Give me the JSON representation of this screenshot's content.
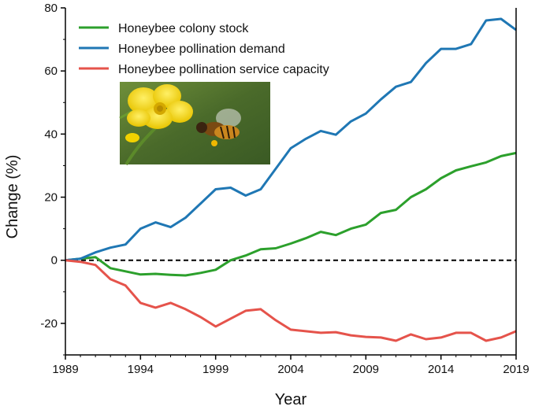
{
  "chart_data": {
    "type": "line",
    "xlabel": "Year",
    "ylabel": "Change (%)",
    "xlim": [
      1989,
      2019
    ],
    "ylim": [
      -30,
      80
    ],
    "x_ticks": [
      "1989",
      "1994",
      "1999",
      "2004",
      "2009",
      "2014",
      "2019"
    ],
    "y_ticks": [
      "80",
      "60",
      "40",
      "20",
      "0",
      "-20"
    ],
    "x_tick_values": [
      1989,
      1994,
      1999,
      2004,
      2009,
      2014,
      2019
    ],
    "y_tick_values": [
      80,
      60,
      40,
      20,
      0,
      -20
    ],
    "reference_line": {
      "y": 0,
      "style": "dashed",
      "color": "#000000"
    },
    "legend_position": "top-left",
    "grid": false,
    "x": [
      1989,
      1990,
      1991,
      1992,
      1993,
      1994,
      1995,
      1996,
      1997,
      1998,
      1999,
      2000,
      2001,
      2002,
      2003,
      2004,
      2005,
      2006,
      2007,
      2008,
      2009,
      2010,
      2011,
      2012,
      2013,
      2014,
      2015,
      2016,
      2017,
      2018,
      2019
    ],
    "series": [
      {
        "name": "Honeybee colony stock",
        "color": "#2ca02c",
        "values": [
          0,
          0.5,
          1.0,
          -2.5,
          -3.5,
          -4.5,
          -4.3,
          -4.6,
          -4.8,
          -4.0,
          -3.0,
          0,
          1.5,
          3.5,
          3.8,
          5.3,
          7.0,
          9.0,
          8.0,
          10.0,
          11.3,
          15.0,
          16.0,
          20.0,
          22.5,
          26.0,
          28.5,
          29.8,
          31.0,
          33.0,
          34.0
        ]
      },
      {
        "name": "Honeybee pollination demand",
        "color": "#1f77b4",
        "values": [
          0,
          0.5,
          2.5,
          4.0,
          5.0,
          10.0,
          12.0,
          10.5,
          13.5,
          18.0,
          22.5,
          23.0,
          20.5,
          22.5,
          29.0,
          35.5,
          38.5,
          41.0,
          39.8,
          44.0,
          46.5,
          51.0,
          55.0,
          56.5,
          62.5,
          67.0,
          67.0,
          68.5,
          76.0,
          76.5,
          73.0
        ]
      },
      {
        "name": "Honeybee pollination service capacity",
        "color": "#e5534b",
        "values": [
          0,
          -0.5,
          -1.5,
          -6.0,
          -8.0,
          -13.5,
          -15.0,
          -13.5,
          -15.5,
          -18.0,
          -21.0,
          -18.5,
          -16.0,
          -15.5,
          -19.0,
          -22.0,
          -22.5,
          -23.0,
          -22.8,
          -23.8,
          -24.3,
          -24.5,
          -25.5,
          -23.5,
          -25.0,
          -24.5,
          -23.0,
          -23.0,
          -25.5,
          -24.5,
          -22.5
        ]
      }
    ]
  },
  "inset_photo": {
    "icon": "bee-on-yellow-flower-photo"
  }
}
